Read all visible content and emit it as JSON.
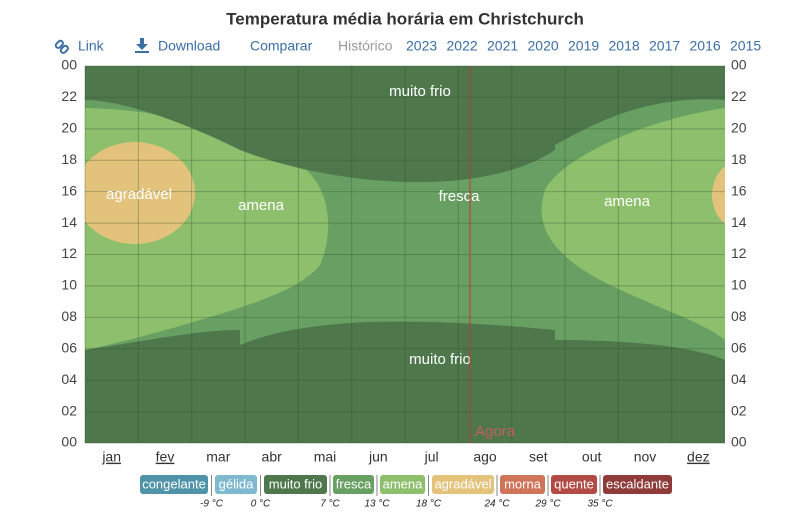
{
  "chart_data": {
    "type": "heatmap",
    "title": "Temperatura média horária em Christchurch",
    "toolbar": {
      "link": "Link",
      "download": "Download",
      "compare": "Comparar",
      "history": "Histórico",
      "years": [
        "2023",
        "2022",
        "2021",
        "2020",
        "2019",
        "2018",
        "2017",
        "2016",
        "2015"
      ]
    },
    "categories": [
      "jan",
      "fev",
      "mar",
      "abr",
      "mai",
      "jun",
      "jul",
      "ago",
      "set",
      "out",
      "nov",
      "dez"
    ],
    "ylim": [
      0,
      24
    ],
    "yticks": [
      {
        "value": 0,
        "label": "00"
      },
      {
        "value": 2,
        "label": "02"
      },
      {
        "value": 4,
        "label": "04"
      },
      {
        "value": 6,
        "label": "06"
      },
      {
        "value": 8,
        "label": "08"
      },
      10,
      12,
      14,
      16,
      18,
      20,
      22,
      {
        "value": 24,
        "label": "00"
      }
    ],
    "grid": true,
    "region_labels": [
      "muito frio",
      "agradável",
      "amena",
      "fresca",
      "amena",
      "muito frio"
    ],
    "now_label": "Agora",
    "legend": [
      {
        "name": "congelante",
        "color": "#4f93a8"
      },
      {
        "name": "gélida",
        "color": "#7fb9cf"
      },
      {
        "name": "muito frio",
        "color": "#4e774b"
      },
      {
        "name": "fresca",
        "color": "#68a063"
      },
      {
        "name": "amena",
        "color": "#8dbf6c"
      },
      {
        "name": "agradável",
        "color": "#e3c37c"
      },
      {
        "name": "morna",
        "color": "#cf7459"
      },
      {
        "name": "quente",
        "color": "#b34a46"
      },
      {
        "name": "escaldante",
        "color": "#8e3b39"
      }
    ],
    "thresholds": [
      {
        "value": -9,
        "label": "-9 °C"
      },
      {
        "value": 0,
        "label": "0 °C"
      },
      {
        "value": 7,
        "label": "7 °C"
      },
      {
        "value": 13,
        "label": "13 °C"
      },
      {
        "value": 18,
        "label": "18 °C"
      },
      {
        "value": 24,
        "label": "24 °C"
      },
      {
        "value": 29,
        "label": "29 °C"
      },
      {
        "value": 35,
        "label": "35 °C"
      }
    ]
  }
}
